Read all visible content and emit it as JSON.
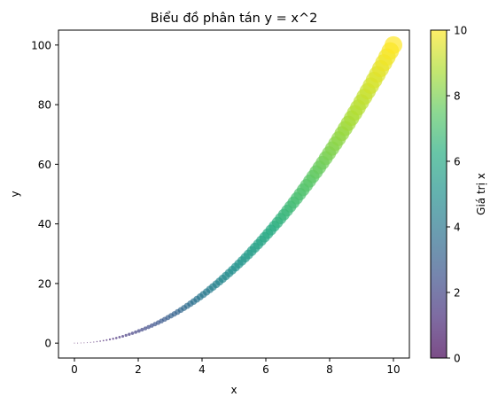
{
  "chart_data": {
    "type": "scatter",
    "title": "Biểu đồ phân tán y = x^2",
    "xlabel": "x",
    "ylabel": "y",
    "x_range": [
      0,
      10
    ],
    "point_count": 100,
    "function": "y = x^2",
    "xlim": [
      -0.5,
      10.5
    ],
    "ylim": [
      -5,
      105
    ],
    "xticks": [
      "0",
      "2",
      "4",
      "6",
      "8",
      "10"
    ],
    "yticks": [
      "0",
      "20",
      "40",
      "60",
      "80",
      "100"
    ],
    "marker_size": "proportional to y",
    "marker_opacity": 0.7,
    "colormap": "viridis",
    "colorbar": {
      "label": "Giá trị x",
      "range": [
        0,
        10
      ],
      "ticks": [
        "0",
        "2",
        "4",
        "6",
        "8",
        "10"
      ]
    },
    "grid": false,
    "legend": "none"
  }
}
